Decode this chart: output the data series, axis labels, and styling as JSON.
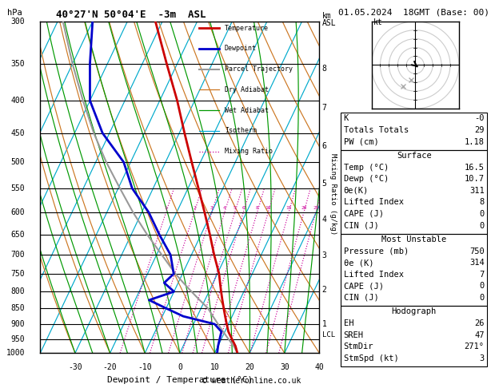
{
  "title_left": "40°27'N 50°04'E  -3m  ASL",
  "title_right": "01.05.2024  18GMT (Base: 00)",
  "xlabel": "Dewpoint / Temperature (°C)",
  "background_color": "#ffffff",
  "pressure_levels": [
    300,
    350,
    400,
    450,
    500,
    550,
    600,
    650,
    700,
    750,
    800,
    850,
    900,
    950,
    1000
  ],
  "T_min": -40,
  "T_max": 40,
  "skew_factor": 45,
  "lcl_pressure": 935,
  "legend_items": [
    {
      "label": "Temperature",
      "color": "#cc0000",
      "style": "solid",
      "lw": 2.0
    },
    {
      "label": "Dewpoint",
      "color": "#0000cc",
      "style": "solid",
      "lw": 2.0
    },
    {
      "label": "Parcel Trajectory",
      "color": "#999999",
      "style": "solid",
      "lw": 1.5
    },
    {
      "label": "Dry Adiabat",
      "color": "#cc7722",
      "style": "solid",
      "lw": 0.9
    },
    {
      "label": "Wet Adiabat",
      "color": "#009900",
      "style": "solid",
      "lw": 0.9
    },
    {
      "label": "Isotherm",
      "color": "#00aadd",
      "style": "solid",
      "lw": 0.9
    },
    {
      "label": "Mixing Ratio",
      "color": "#cc0099",
      "style": "dotted",
      "lw": 0.9
    }
  ],
  "temp_profile_pressure": [
    1000,
    975,
    950,
    925,
    900,
    875,
    850,
    825,
    800,
    775,
    750,
    700,
    650,
    600,
    550,
    500,
    450,
    400,
    350,
    300
  ],
  "temp_profile_temp": [
    16.5,
    15.0,
    13.0,
    11.0,
    9.5,
    8.0,
    6.5,
    5.0,
    3.5,
    2.0,
    0.5,
    -3.5,
    -7.5,
    -12.0,
    -17.0,
    -22.5,
    -28.5,
    -35.0,
    -43.0,
    -52.0
  ],
  "dewp_profile_pressure": [
    1000,
    975,
    950,
    925,
    900,
    875,
    850,
    825,
    800,
    775,
    750,
    700,
    650,
    600,
    550,
    500,
    450,
    400,
    350,
    300
  ],
  "dewp_profile_temp": [
    10.7,
    10.0,
    9.5,
    9.0,
    6.0,
    -4.0,
    -10.0,
    -16.0,
    -10.0,
    -14.0,
    -12.5,
    -16.0,
    -22.0,
    -28.0,
    -36.0,
    -42.0,
    -52.0,
    -60.0,
    -65.0,
    -70.0
  ],
  "parcel_profile_pressure": [
    1000,
    975,
    950,
    925,
    900,
    875,
    850,
    825,
    800,
    775,
    750,
    700,
    650,
    600,
    550,
    500,
    450,
    400,
    350,
    300
  ],
  "parcel_profile_temp": [
    16.5,
    14.5,
    12.0,
    9.5,
    7.0,
    4.5,
    2.0,
    -1.5,
    -5.0,
    -8.5,
    -12.0,
    -18.5,
    -25.5,
    -32.5,
    -39.5,
    -47.0,
    -54.5,
    -62.0,
    -70.0,
    -78.5
  ],
  "mixing_ratio_values": [
    1,
    2,
    3,
    4,
    5,
    6,
    8,
    10,
    15,
    20,
    25
  ],
  "km_labels": [
    {
      "km": 8,
      "p": 356
    },
    {
      "km": 7,
      "p": 410
    },
    {
      "km": 6,
      "p": 472
    },
    {
      "km": 5,
      "p": 541
    },
    {
      "km": 4,
      "p": 616
    },
    {
      "km": 3,
      "p": 701
    },
    {
      "km": 2,
      "p": 795
    },
    {
      "km": 1,
      "p": 899
    }
  ],
  "mr_axis_labels": [
    {
      "val": 4,
      "p": 616
    },
    {
      "val": 3,
      "p": 701
    },
    {
      "val": 2,
      "p": 795
    },
    {
      "val": 1,
      "p": 899
    }
  ],
  "table_rows_box1": [
    {
      "label": "K",
      "value": "-0"
    },
    {
      "label": "Totals Totals",
      "value": "29"
    },
    {
      "label": "PW (cm)",
      "value": "1.18"
    }
  ],
  "table_box2_title": "Surface",
  "table_rows_box2": [
    {
      "label": "Temp (°C)",
      "value": "16.5"
    },
    {
      "label": "Dewp (°C)",
      "value": "10.7"
    },
    {
      "label": "θe(K)",
      "value": "311"
    },
    {
      "label": "Lifted Index",
      "value": "8"
    },
    {
      "label": "CAPE (J)",
      "value": "0"
    },
    {
      "label": "CIN (J)",
      "value": "0"
    }
  ],
  "table_box3_title": "Most Unstable",
  "table_rows_box3": [
    {
      "label": "Pressure (mb)",
      "value": "750"
    },
    {
      "label": "θe (K)",
      "value": "314"
    },
    {
      "label": "Lifted Index",
      "value": "7"
    },
    {
      "label": "CAPE (J)",
      "value": "0"
    },
    {
      "label": "CIN (J)",
      "value": "0"
    }
  ],
  "table_box4_title": "Hodograph",
  "table_rows_box4": [
    {
      "label": "EH",
      "value": "26"
    },
    {
      "label": "SREH",
      "value": "47"
    },
    {
      "label": "StmDir",
      "value": "271°"
    },
    {
      "label": "StmSpd (kt)",
      "value": "3"
    }
  ],
  "copyright": "© weatheronline.co.uk",
  "isotherm_color": "#00aacc",
  "dry_adiabat_color": "#cc7722",
  "wet_adiabat_color": "#009900",
  "mr_color": "#cc0099",
  "temp_color": "#cc0000",
  "dewp_color": "#0000cc",
  "parcel_color": "#999999"
}
